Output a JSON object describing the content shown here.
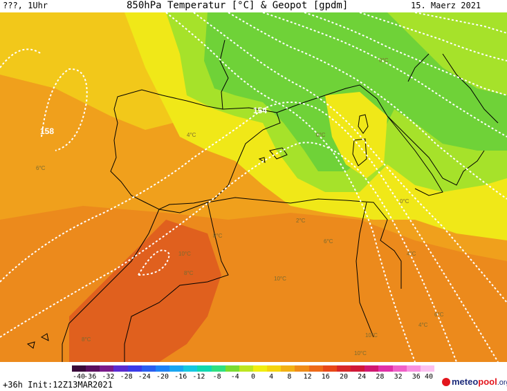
{
  "header": {
    "left_text": "???, 1Uhr",
    "title": "850hPa Temperatur [°C] & Geopot [gpdm]",
    "date": "15. Maerz 2021"
  },
  "footer": {
    "init_text": "+36h Init:12Z13MAR2021",
    "logo_main": "meteo",
    "logo_accent": "pool",
    "logo_suffix": ".org"
  },
  "colorbar": {
    "ticks": [
      "-40",
      "-36",
      "-32",
      "-28",
      "-24",
      "-20",
      "-16",
      "-12",
      "-8",
      "-4",
      "0",
      "4",
      "8",
      "12",
      "16",
      "20",
      "24",
      "28",
      "32",
      "36",
      "40"
    ],
    "colors": [
      "#3a0a3a",
      "#5a0f5e",
      "#7a1a8a",
      "#5a2bd0",
      "#3a3ae8",
      "#2a5ef0",
      "#1e82f5",
      "#1aa6f0",
      "#16c8e0",
      "#10d8b0",
      "#30e080",
      "#7adc30",
      "#bce620",
      "#f0ee10",
      "#f4d40e",
      "#f2b014",
      "#f08c18",
      "#ee6a18",
      "#e84818",
      "#d82828",
      "#d01838",
      "#d01870",
      "#e030a8",
      "#f060c8",
      "#f890e0",
      "#fcc0f0"
    ]
  },
  "map": {
    "geopot_labels": [
      {
        "text": "158"
      },
      {
        "text": "154"
      }
    ],
    "temp_labels": [
      {
        "text": "0°C"
      },
      {
        "text": "0°C"
      },
      {
        "text": "0°C"
      },
      {
        "text": "4°C"
      },
      {
        "text": "2°C"
      },
      {
        "text": "6°C"
      },
      {
        "text": "4°C"
      },
      {
        "text": "6°C"
      },
      {
        "text": "10°C"
      },
      {
        "text": "10°C"
      },
      {
        "text": "8°C"
      },
      {
        "text": "8°C"
      },
      {
        "text": "6°C"
      },
      {
        "text": "10°C"
      },
      {
        "text": "10°C"
      },
      {
        "text": "4°C"
      },
      {
        "text": "8°C"
      }
    ],
    "colors": {
      "cold_green": "#6fd238",
      "cool_green": "#a6e22a",
      "yellow": "#f0e818",
      "warm_yellow": "#f2c81a",
      "orange": "#f0a01c",
      "deep_orange": "#ec8a1c",
      "red_orange": "#e0601e"
    }
  }
}
